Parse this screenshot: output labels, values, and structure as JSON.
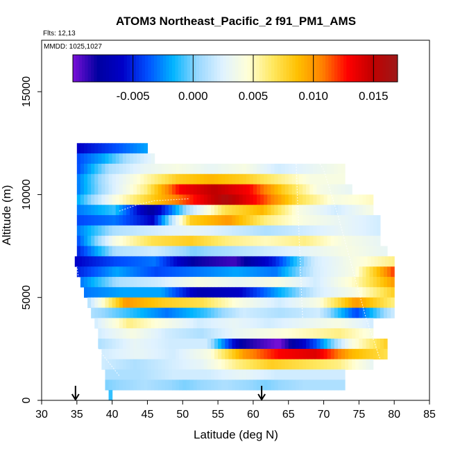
{
  "chart_data": {
    "type": "heatmap",
    "title": "ATOM3 Northeast_Pacific_2 f91_PM1_AMS",
    "subtitle_flights": "Flts: 12,13",
    "subtitle_dates": "MMDD: 1025,1027",
    "xlabel": "Latitude (deg N)",
    "ylabel": "Altitude (m)",
    "xlim": [
      30,
      85
    ],
    "ylim": [
      0,
      17500
    ],
    "xticks": [
      "30",
      "35",
      "40",
      "45",
      "50",
      "55",
      "60",
      "65",
      "70",
      "75",
      "80",
      "85"
    ],
    "yticks": [
      "0",
      "5000",
      "10000",
      "15000"
    ],
    "colorbar": {
      "range": [
        -0.01,
        0.017
      ],
      "ticks": [
        "-0.005",
        "0.000",
        "0.005",
        "0.010",
        "0.015"
      ],
      "tick_values": [
        -0.005,
        0.0,
        0.005,
        0.01,
        0.015
      ],
      "palette": [
        "#7a10d8",
        "#0000a0",
        "#0000c8",
        "#0050ff",
        "#00b4ff",
        "#99d8ff",
        "#e0f2ff",
        "#ffffd8",
        "#ffe860",
        "#ffc000",
        "#ff8000",
        "#ff0000",
        "#c00000",
        "#9e1a1a"
      ]
    },
    "arrows_latitude": [
      34.8,
      61.2
    ],
    "bands": [
      {
        "alt_min": 12000,
        "alt_max": 12500,
        "lat_min": 35,
        "lat_max": 45,
        "values": [
          -0.006,
          -0.004,
          -0.002
        ]
      },
      {
        "alt_min": 11500,
        "alt_max": 12000,
        "lat_min": 35,
        "lat_max": 46,
        "values": [
          -0.004,
          -0.002,
          0.001,
          0.003
        ]
      },
      {
        "alt_min": 11000,
        "alt_max": 11500,
        "lat_min": 35,
        "lat_max": 73,
        "values": [
          -0.004,
          0.001,
          0.003,
          0.004,
          0.003,
          0.004,
          0.002,
          0.003,
          0.004
        ]
      },
      {
        "alt_min": 10500,
        "alt_max": 11000,
        "lat_min": 35,
        "lat_max": 73,
        "values": [
          -0.003,
          0.002,
          0.005,
          0.008,
          0.009,
          0.008,
          0.006,
          0.004,
          0.004
        ]
      },
      {
        "alt_min": 10000,
        "alt_max": 10500,
        "lat_min": 35,
        "lat_max": 74,
        "values": [
          -0.003,
          0.002,
          0.006,
          0.013,
          0.015,
          0.013,
          0.008,
          0.004,
          0.003
        ]
      },
      {
        "alt_min": 9500,
        "alt_max": 10000,
        "lat_min": 35,
        "lat_max": 77,
        "values": [
          -0.002,
          0.004,
          0.008,
          0.012,
          0.016,
          0.012,
          0.007,
          0.004,
          0.005
        ]
      },
      {
        "alt_min": 9000,
        "alt_max": 9500,
        "lat_min": 35,
        "lat_max": 77,
        "values": [
          -0.003,
          -0.001,
          -0.008,
          0.001,
          0.007,
          0.009,
          0.004,
          0.002,
          0.004
        ]
      },
      {
        "alt_min": 8500,
        "alt_max": 9000,
        "lat_min": 35,
        "lat_max": 78,
        "values": [
          -0.004,
          -0.003,
          -0.006,
          0.008,
          0.01,
          0.006,
          0.004,
          0.003,
          0.002
        ]
      },
      {
        "alt_min": 8000,
        "alt_max": 8500,
        "lat_min": 35,
        "lat_max": 78,
        "values": [
          -0.003,
          0.001,
          0.002,
          0.003,
          0.002,
          0.001,
          0.002,
          0.003,
          0.002
        ]
      },
      {
        "alt_min": 7500,
        "alt_max": 8000,
        "lat_min": 35,
        "lat_max": 78,
        "values": [
          -0.004,
          0.004,
          0.007,
          0.008,
          0.006,
          0.005,
          0.006,
          0.004,
          0.003
        ]
      },
      {
        "alt_min": 7000,
        "alt_max": 7500,
        "lat_min": 35,
        "lat_max": 79,
        "values": [
          -0.005,
          0.001,
          0.002,
          0.0,
          0.001,
          0.002,
          0.003,
          0.004,
          0.003
        ]
      },
      {
        "alt_min": 6500,
        "alt_max": 7000,
        "lat_min": 34.7,
        "lat_max": 80,
        "values": [
          -0.006,
          -0.004,
          -0.003,
          -0.008,
          -0.009,
          -0.005,
          0.002,
          0.004,
          0.006
        ]
      },
      {
        "alt_min": 6000,
        "alt_max": 6500,
        "lat_min": 35,
        "lat_max": 80,
        "values": [
          -0.005,
          -0.002,
          -0.004,
          -0.003,
          -0.002,
          -0.003,
          0.002,
          0.004,
          0.012
        ]
      },
      {
        "alt_min": 5500,
        "alt_max": 6000,
        "lat_min": 35.5,
        "lat_max": 80,
        "values": [
          -0.003,
          0.001,
          0.002,
          0.004,
          0.003,
          0.004,
          0.002,
          0.005,
          0.01
        ]
      },
      {
        "alt_min": 5000,
        "alt_max": 5500,
        "lat_min": 36,
        "lat_max": 80,
        "values": [
          -0.003,
          -0.002,
          -0.002,
          -0.007,
          -0.006,
          -0.002,
          0.002,
          0.004,
          0.008
        ]
      },
      {
        "alt_min": 4500,
        "alt_max": 5000,
        "lat_min": 36.5,
        "lat_max": 80,
        "values": [
          0.001,
          0.01,
          0.008,
          0.007,
          0.004,
          0.002,
          0.004,
          0.01,
          0.006
        ]
      },
      {
        "alt_min": 4000,
        "alt_max": 4500,
        "lat_min": 37,
        "lat_max": 80,
        "values": [
          0.001,
          -0.001,
          -0.003,
          -0.001,
          0.002,
          0.001,
          0.002,
          -0.004,
          0.002
        ]
      },
      {
        "alt_min": 3500,
        "alt_max": 4000,
        "lat_min": 37.5,
        "lat_max": 77,
        "values": [
          0.002,
          0.006,
          0.004,
          0.002,
          0.003,
          0.002,
          0.003,
          0.004,
          0.002
        ]
      },
      {
        "alt_min": 3000,
        "alt_max": 3500,
        "lat_min": 38,
        "lat_max": 77,
        "values": [
          0.002,
          0.004,
          0.002,
          0.001,
          0.003,
          0.004,
          0.005,
          0.006,
          0.004
        ]
      },
      {
        "alt_min": 2500,
        "alt_max": 3000,
        "lat_min": 38,
        "lat_max": 79,
        "values": [
          0.001,
          0.003,
          0.002,
          0.002,
          -0.008,
          -0.01,
          -0.004,
          0.004,
          0.008
        ]
      },
      {
        "alt_min": 2000,
        "alt_max": 2500,
        "lat_min": 38.5,
        "lat_max": 79,
        "values": [
          0.002,
          0.003,
          0.002,
          0.004,
          0.01,
          0.013,
          0.014,
          0.009,
          0.007
        ]
      },
      {
        "alt_min": 1500,
        "alt_max": 2000,
        "lat_min": 38.5,
        "lat_max": 77,
        "values": [
          0.002,
          0.001,
          0.002,
          0.003,
          0.006,
          0.008,
          0.007,
          0.006,
          0.003
        ]
      },
      {
        "alt_min": 1000,
        "alt_max": 1500,
        "lat_min": 39,
        "lat_max": 73,
        "values": [
          0.001,
          0.001,
          0.002,
          0.002,
          0.003,
          0.002,
          0.002,
          0.002
        ]
      },
      {
        "alt_min": 500,
        "alt_max": 1000,
        "lat_min": 39,
        "lat_max": 73,
        "values": [
          0.0,
          0.001,
          0.0,
          0.001,
          0.0,
          0.001,
          0.001
        ]
      },
      {
        "alt_min": 0,
        "alt_max": 500,
        "lat_min": 39.5,
        "lat_max": 40,
        "values": [
          -0.001
        ]
      }
    ]
  }
}
